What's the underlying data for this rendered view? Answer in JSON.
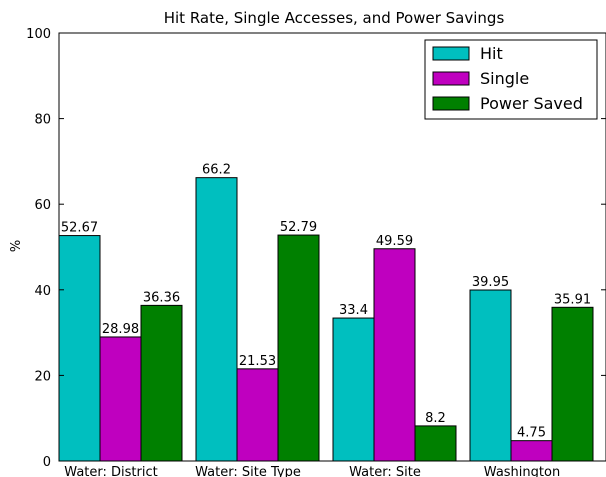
{
  "chart_data": {
    "type": "bar",
    "title": "Hit Rate, Single Accesses, and Power Savings",
    "ylabel": "%",
    "xlabel": "",
    "ylim": [
      0,
      100
    ],
    "yticks": [
      0,
      20,
      40,
      60,
      80,
      100
    ],
    "categories": [
      "Water: District",
      "Water: Site Type",
      "Water: Site",
      "Washington"
    ],
    "series": [
      {
        "name": "Hit",
        "color": "#00bfbf",
        "values": [
          52.67,
          66.2,
          33.4,
          39.95
        ]
      },
      {
        "name": "Single",
        "color": "#bf00bf",
        "values": [
          28.98,
          21.53,
          49.59,
          4.75
        ]
      },
      {
        "name": "Power Saved",
        "color": "#008000",
        "values": [
          36.36,
          52.79,
          8.2,
          35.91
        ]
      }
    ],
    "legend_position": "top-right",
    "grid": false
  }
}
